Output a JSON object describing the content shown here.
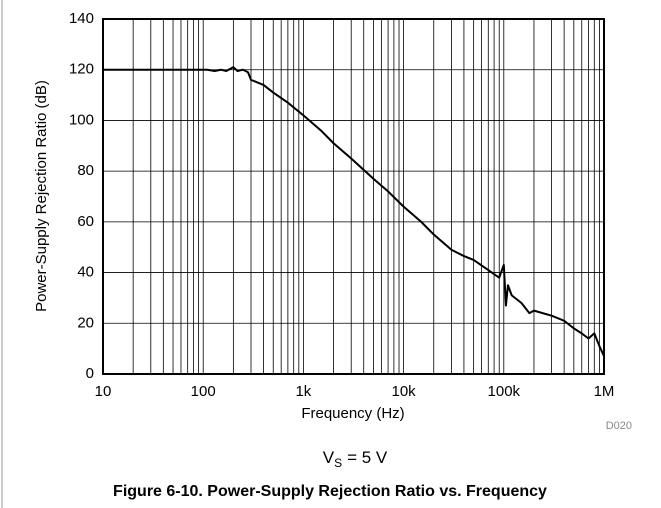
{
  "chart_data": {
    "type": "line",
    "x_label": "Frequency (Hz)",
    "y_label": "Power-Supply Rejection Ratio (dB)",
    "figure_id": "D020",
    "condition": {
      "main": "V",
      "sub": "S",
      "rest": "= 5 V"
    },
    "caption": "Figure 6-10. Power-Supply Rejection Ratio vs. Frequency",
    "x_log": true,
    "grid": true,
    "minor_grid": true,
    "xlim": [
      10,
      1000000
    ],
    "xticks": [
      10,
      100,
      {
        "value": 1000,
        "label": "1k"
      },
      {
        "value": 10000,
        "label": "10k"
      },
      {
        "value": 100000,
        "label": "100k"
      },
      {
        "value": 1000000,
        "label": "1M"
      }
    ],
    "ylim": [
      0,
      140
    ],
    "yticks": [
      0,
      20,
      40,
      60,
      80,
      100,
      120,
      140
    ],
    "color": "#000000",
    "x": [
      10,
      100,
      110,
      130,
      150,
      170,
      200,
      220,
      250,
      280,
      300,
      400,
      500,
      700,
      1000,
      1500,
      2000,
      3000,
      5000,
      7000,
      10000,
      15000,
      20000,
      30000,
      40000,
      50000,
      70000,
      90000,
      100000,
      105000,
      110000,
      120000,
      150000,
      180000,
      200000,
      300000,
      400000,
      500000,
      600000,
      700000,
      800000,
      900000,
      1000000
    ],
    "values": [
      120,
      120,
      120,
      119.5,
      120,
      119.5,
      121,
      119.5,
      120,
      119,
      116,
      114,
      111,
      107,
      102,
      96,
      91,
      85,
      77,
      72,
      66,
      60,
      55,
      49,
      46.5,
      45,
      41,
      38,
      43,
      27,
      35,
      31,
      28,
      24,
      25,
      23,
      21,
      18,
      16,
      14,
      16,
      11,
      7
    ]
  }
}
